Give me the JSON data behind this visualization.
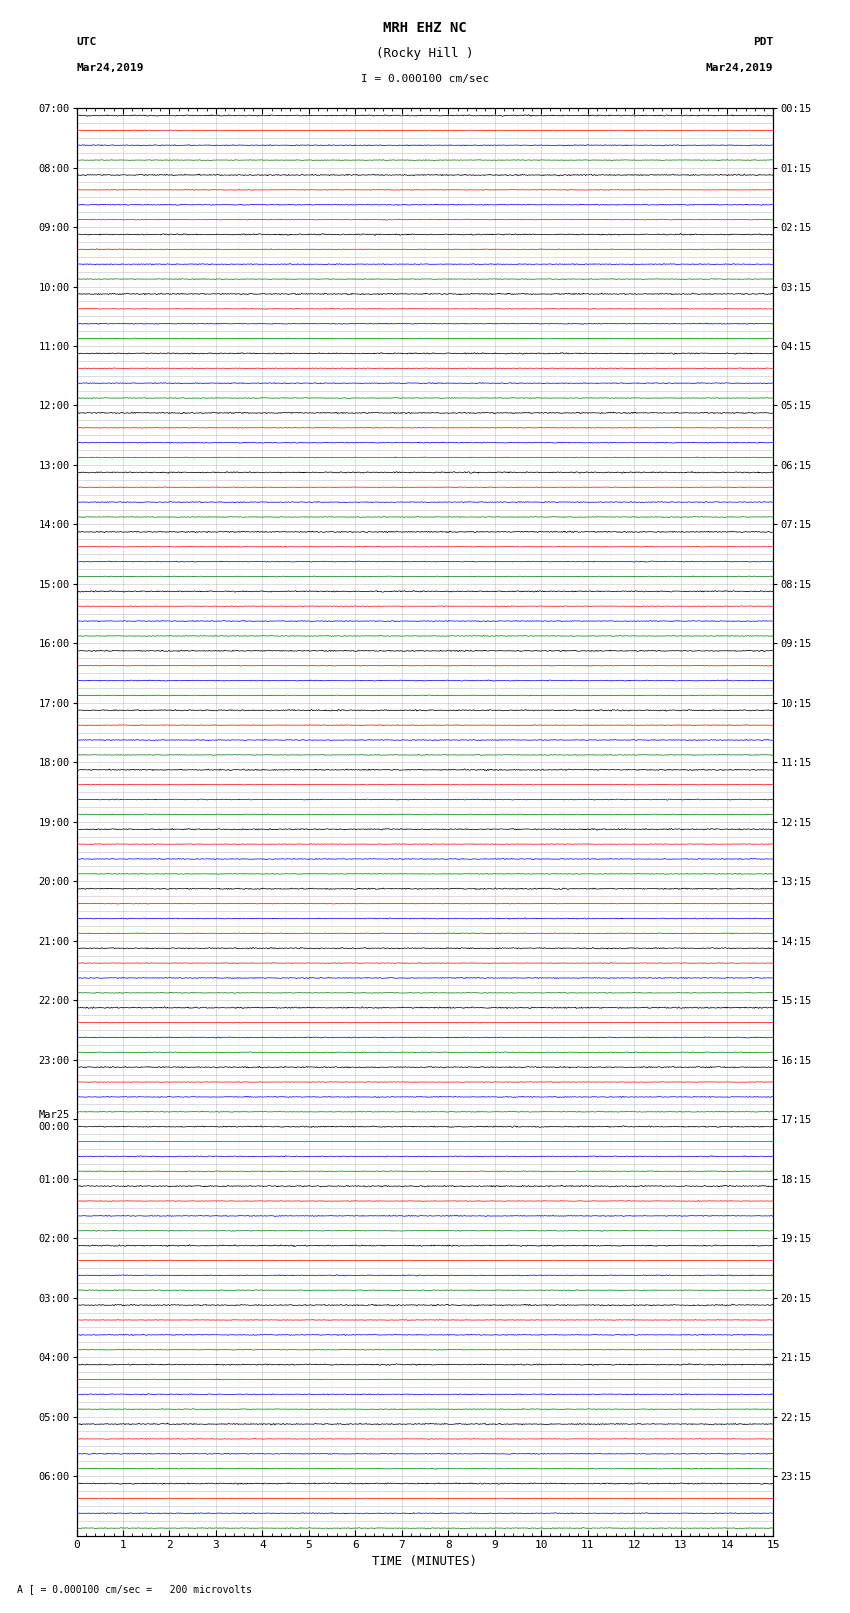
{
  "title_line1": "MRH EHZ NC",
  "title_line2": "(Rocky Hill )",
  "scale_text": "I = 0.000100 cm/sec",
  "left_header_1": "UTC",
  "left_header_2": "Mar24,2019",
  "right_header_1": "PDT",
  "right_header_2": "Mar24,2019",
  "bottom_label": "TIME (MINUTES)",
  "bottom_note": "A [ = 0.000100 cm/sec =   200 microvolts",
  "xlim": [
    0,
    15
  ],
  "xticks": [
    0,
    1,
    2,
    3,
    4,
    5,
    6,
    7,
    8,
    9,
    10,
    11,
    12,
    13,
    14,
    15
  ],
  "utc_labels": [
    "07:00",
    "08:00",
    "09:00",
    "10:00",
    "11:00",
    "12:00",
    "13:00",
    "14:00",
    "15:00",
    "16:00",
    "17:00",
    "18:00",
    "19:00",
    "20:00",
    "21:00",
    "22:00",
    "23:00",
    "Mar25\n00:00",
    "01:00",
    "02:00",
    "03:00",
    "04:00",
    "05:00",
    "06:00"
  ],
  "pdt_labels": [
    "00:15",
    "01:15",
    "02:15",
    "03:15",
    "04:15",
    "05:15",
    "06:15",
    "07:15",
    "08:15",
    "09:15",
    "10:15",
    "11:15",
    "12:15",
    "13:15",
    "14:15",
    "15:15",
    "16:15",
    "17:15",
    "18:15",
    "19:15",
    "20:15",
    "21:15",
    "22:15",
    "23:15"
  ],
  "n_hours": 24,
  "traces_per_hour": 4,
  "row_colors": [
    "black",
    "red",
    "blue",
    "green"
  ],
  "background_color": "white",
  "grid_color": "#999999",
  "fig_width": 8.5,
  "fig_height": 16.13,
  "noise_levels": [
    0.08,
    0.04,
    0.06,
    0.05
  ],
  "trace_scale": 0.35
}
